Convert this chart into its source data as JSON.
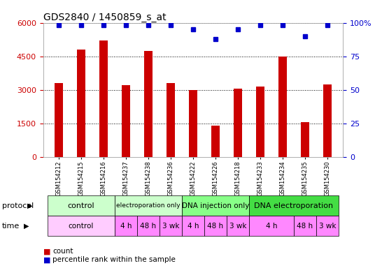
{
  "title": "GDS2840 / 1450859_s_at",
  "samples": [
    "GSM154212",
    "GSM154215",
    "GSM154216",
    "GSM154237",
    "GSM154238",
    "GSM154236",
    "GSM154222",
    "GSM154226",
    "GSM154218",
    "GSM154233",
    "GSM154234",
    "GSM154235",
    "GSM154230"
  ],
  "counts": [
    3300,
    4800,
    5200,
    3200,
    4750,
    3300,
    3000,
    1400,
    3050,
    3150,
    4500,
    1550,
    3250
  ],
  "percentile_ranks": [
    98,
    98,
    98,
    98,
    98,
    98,
    95,
    88,
    95,
    98,
    98,
    90,
    98
  ],
  "bar_color": "#cc0000",
  "dot_color": "#0000cc",
  "ylim_left": [
    0,
    6000
  ],
  "ylim_right": [
    0,
    100
  ],
  "yticks_left": [
    0,
    1500,
    3000,
    4500,
    6000
  ],
  "yticks_right": [
    0,
    25,
    50,
    75,
    100
  ],
  "protocol_groups": [
    {
      "label": "control",
      "start": 0,
      "end": 3,
      "color": "#ccffcc"
    },
    {
      "label": "electroporation only",
      "start": 3,
      "end": 6,
      "color": "#ccffcc"
    },
    {
      "label": "DNA injection only",
      "start": 6,
      "end": 9,
      "color": "#88ff88"
    },
    {
      "label": "DNA electroporation",
      "start": 9,
      "end": 13,
      "color": "#44dd44"
    }
  ],
  "time_groups": [
    {
      "label": "control",
      "start": 0,
      "end": 3,
      "color": "#ffccff"
    },
    {
      "label": "4 h",
      "start": 3,
      "end": 4,
      "color": "#ff88ff"
    },
    {
      "label": "48 h",
      "start": 4,
      "end": 5,
      "color": "#ff88ff"
    },
    {
      "label": "3 wk",
      "start": 5,
      "end": 6,
      "color": "#ff88ff"
    },
    {
      "label": "4 h",
      "start": 6,
      "end": 7,
      "color": "#ff88ff"
    },
    {
      "label": "48 h",
      "start": 7,
      "end": 8,
      "color": "#ff88ff"
    },
    {
      "label": "3 wk",
      "start": 8,
      "end": 9,
      "color": "#ff88ff"
    },
    {
      "label": "4 h",
      "start": 9,
      "end": 11,
      "color": "#ff88ff"
    },
    {
      "label": "48 h",
      "start": 11,
      "end": 12,
      "color": "#ff88ff"
    },
    {
      "label": "3 wk",
      "start": 12,
      "end": 13,
      "color": "#ff88ff"
    }
  ],
  "legend_count_color": "#cc0000",
  "legend_dot_color": "#0000cc",
  "background_color": "#ffffff",
  "tick_label_color_left": "#cc0000",
  "tick_label_color_right": "#0000cc",
  "bar_width": 0.4
}
